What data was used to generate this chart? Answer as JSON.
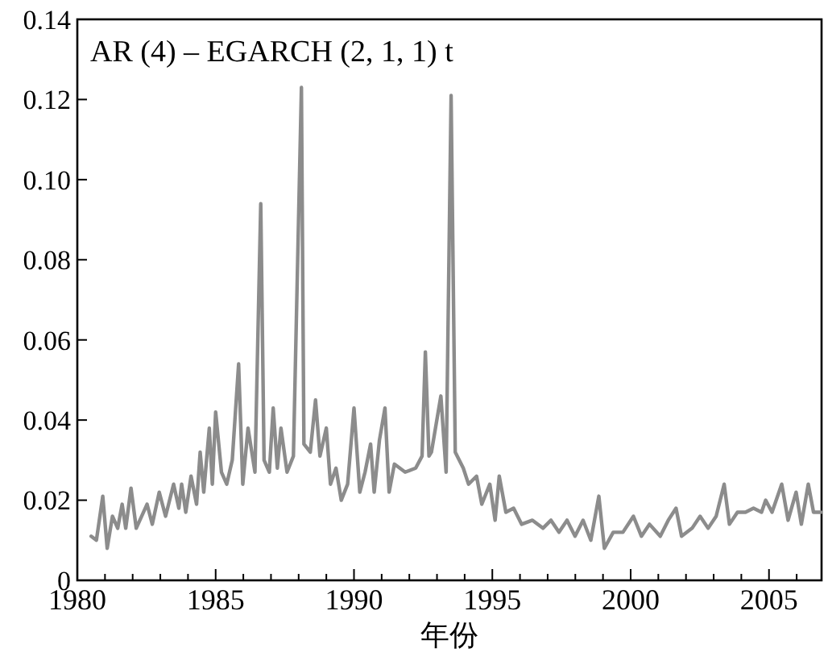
{
  "chart_data": {
    "type": "line",
    "xlabel": "年份",
    "annotations": [
      "AR (4) – EGARCH (2, 1, 1) t"
    ],
    "xlim": [
      1980,
      2006.9
    ],
    "ylim": [
      0,
      0.14
    ],
    "xticks": [
      1980,
      {
        "value": 1981,
        "label": null
      },
      {
        "value": 1982,
        "label": null
      },
      {
        "value": 1983,
        "label": null
      },
      {
        "value": 1984,
        "label": null
      },
      1985,
      {
        "value": 1986,
        "label": null
      },
      {
        "value": 1987,
        "label": null
      },
      {
        "value": 1988,
        "label": null
      },
      {
        "value": 1989,
        "label": null
      },
      1990,
      {
        "value": 1991,
        "label": null
      },
      {
        "value": 1992,
        "label": null
      },
      {
        "value": 1993,
        "label": null
      },
      {
        "value": 1994,
        "label": null
      },
      1995,
      {
        "value": 1996,
        "label": null
      },
      {
        "value": 1997,
        "label": null
      },
      {
        "value": 1998,
        "label": null
      },
      {
        "value": 1999,
        "label": null
      },
      2000,
      {
        "value": 2001,
        "label": null
      },
      {
        "value": 2002,
        "label": null
      },
      {
        "value": 2003,
        "label": null
      },
      {
        "value": 2004,
        "label": null
      },
      2005,
      {
        "value": 2006,
        "label": null
      }
    ],
    "yticks": [
      0,
      0.02,
      0.04,
      0.06,
      0.08,
      {
        "value": 0.1,
        "label": "0.10"
      },
      0.12,
      0.14
    ],
    "grid": false,
    "marker": "none",
    "line_style": "solid",
    "x": [
      1980.5,
      1980.69,
      1980.92,
      1981.08,
      1981.27,
      1981.46,
      1981.62,
      1981.75,
      1981.94,
      1982.13,
      1982.52,
      1982.71,
      1982.96,
      1983.19,
      1983.48,
      1983.67,
      1983.77,
      1983.92,
      1984.11,
      1984.31,
      1984.44,
      1984.57,
      1984.77,
      1984.88,
      1985.0,
      1985.21,
      1985.4,
      1985.6,
      1985.83,
      1985.98,
      1986.17,
      1986.42,
      1986.63,
      1986.75,
      1986.94,
      1987.08,
      1987.23,
      1987.36,
      1987.58,
      1987.81,
      1988.1,
      1988.19,
      1988.42,
      1988.61,
      1988.77,
      1989.0,
      1989.15,
      1989.35,
      1989.54,
      1989.77,
      1990.0,
      1990.21,
      1990.4,
      1990.6,
      1990.73,
      1990.92,
      1991.12,
      1991.27,
      1991.46,
      1991.85,
      1992.23,
      1992.46,
      1992.58,
      1992.71,
      1992.8,
      1993.14,
      1993.33,
      1993.51,
      1993.66,
      1993.95,
      1994.14,
      1994.43,
      1994.62,
      1994.91,
      1995.1,
      1995.25,
      1995.49,
      1995.77,
      1996.06,
      1996.45,
      1996.83,
      1997.12,
      1997.41,
      1997.7,
      1997.99,
      1998.28,
      1998.56,
      1998.85,
      1999.05,
      1999.37,
      1999.72,
      2000.1,
      2000.39,
      2000.68,
      2001.07,
      2001.36,
      2001.64,
      2001.84,
      2002.22,
      2002.51,
      2002.8,
      2003.09,
      2003.38,
      2003.57,
      2003.86,
      2004.15,
      2004.44,
      2004.73,
      2004.88,
      2005.11,
      2005.46,
      2005.69,
      2005.98,
      2006.17,
      2006.42,
      2006.61,
      2006.88
    ],
    "series": [
      {
        "color": "#8c8c8c",
        "values": [
          0.011,
          0.01,
          0.021,
          0.008,
          0.016,
          0.013,
          0.019,
          0.013,
          0.023,
          0.013,
          0.019,
          0.014,
          0.022,
          0.016,
          0.024,
          0.018,
          0.024,
          0.017,
          0.026,
          0.019,
          0.032,
          0.022,
          0.038,
          0.024,
          0.042,
          0.027,
          0.024,
          0.03,
          0.054,
          0.024,
          0.038,
          0.027,
          0.094,
          0.03,
          0.027,
          0.043,
          0.028,
          0.038,
          0.027,
          0.031,
          0.123,
          0.034,
          0.032,
          0.045,
          0.031,
          0.038,
          0.024,
          0.028,
          0.02,
          0.024,
          0.043,
          0.022,
          0.027,
          0.034,
          0.022,
          0.035,
          0.043,
          0.022,
          0.029,
          0.027,
          0.028,
          0.031,
          0.057,
          0.031,
          0.032,
          0.046,
          0.027,
          0.121,
          0.032,
          0.028,
          0.024,
          0.026,
          0.019,
          0.024,
          0.015,
          0.026,
          0.017,
          0.018,
          0.014,
          0.015,
          0.013,
          0.015,
          0.012,
          0.015,
          0.011,
          0.015,
          0.01,
          0.021,
          0.008,
          0.012,
          0.012,
          0.016,
          0.011,
          0.014,
          0.011,
          0.015,
          0.018,
          0.011,
          0.013,
          0.016,
          0.013,
          0.016,
          0.024,
          0.014,
          0.017,
          0.017,
          0.018,
          0.017,
          0.02,
          0.017,
          0.024,
          0.015,
          0.022,
          0.014,
          0.024,
          0.017,
          0.017
        ]
      }
    ]
  }
}
